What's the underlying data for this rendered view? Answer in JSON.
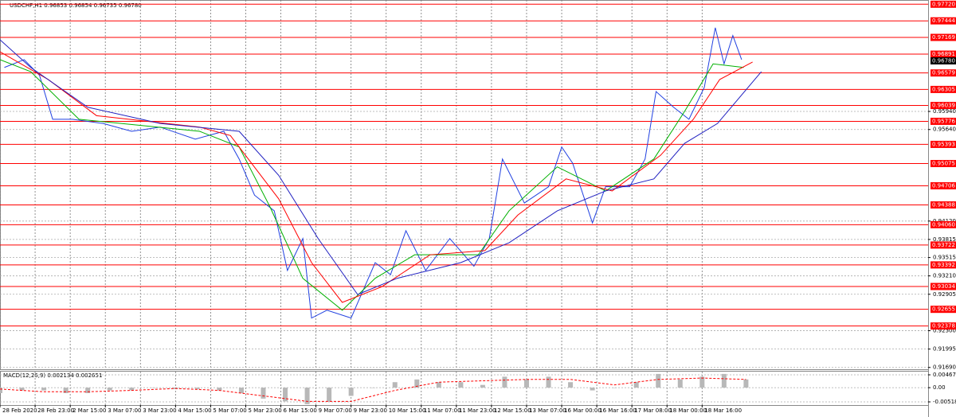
{
  "chart_data": [
    {
      "type": "line",
      "title": "USDCHF,H1  0.96853 0.96854 0.96735 0.96780",
      "xlim": [
        0,
        423
      ],
      "ylim": [
        0.9166,
        0.9779
      ],
      "grid": true,
      "xticks": [
        {
          "value": 0,
          "label": "28 Feb 2020"
        },
        {
          "value": 16,
          "label": "28 Feb 23:00"
        },
        {
          "value": 32,
          "label": "2 Mar 15:00"
        },
        {
          "value": 48,
          "label": "3 Mar 07:00"
        },
        {
          "value": 64,
          "label": "3 Mar 23:00"
        },
        {
          "value": 80,
          "label": "4 Mar 15:00"
        },
        {
          "value": 96,
          "label": "5 Mar 07:00"
        },
        {
          "value": 112,
          "label": "5 Mar 23:00"
        },
        {
          "value": 128,
          "label": "6 Mar 15:00"
        },
        {
          "value": 144,
          "label": "9 Mar 07:00"
        },
        {
          "value": 160,
          "label": "9 Mar 23:00"
        },
        {
          "value": 176,
          "label": "10 Mar 15:00"
        },
        {
          "value": 192,
          "label": "11 Mar 07:00"
        },
        {
          "value": 208,
          "label": "11 Mar 23:00"
        },
        {
          "value": 224,
          "label": "12 Mar 15:00"
        },
        {
          "value": 240,
          "label": "13 Mar 07:00"
        },
        {
          "value": 256,
          "label": "16 Mar 00:00"
        },
        {
          "value": 272,
          "label": "16 Mar 16:00"
        },
        {
          "value": 288,
          "label": "17 Mar 08:00"
        },
        {
          "value": 304,
          "label": "18 Mar 00:00"
        },
        {
          "value": 320,
          "label": "18 Mar 16:00"
        }
      ],
      "yticks": [
        {
          "value": 0.9594,
          "label": "0.95940"
        },
        {
          "value": 0.9564,
          "label": "0.95640"
        },
        {
          "value": 0.9412,
          "label": "0.94120"
        },
        {
          "value": 0.93815,
          "label": "0.93815"
        },
        {
          "value": 0.93515,
          "label": "0.93515"
        },
        {
          "value": 0.9321,
          "label": "0.93210"
        },
        {
          "value": 0.92905,
          "label": "0.92905"
        },
        {
          "value": 0.923,
          "label": "0.92300"
        },
        {
          "value": 0.91995,
          "label": "0.91995"
        },
        {
          "value": 0.9169,
          "label": "0.91690"
        }
      ],
      "levels": {
        "color": "#ff0000",
        "items": [
          {
            "value": 0.9772,
            "label": "0.97720"
          },
          {
            "value": 0.97444,
            "label": "0.97444"
          },
          {
            "value": 0.97169,
            "label": "0.97169"
          },
          {
            "value": 0.96891,
            "label": "0.96891"
          },
          {
            "value": 0.96579,
            "label": "0.96579"
          },
          {
            "value": 0.96305,
            "label": "0.96305"
          },
          {
            "value": 0.96039,
            "label": "0.96039"
          },
          {
            "value": 0.95776,
            "label": "0.95776"
          },
          {
            "value": 0.95393,
            "label": "0.95393"
          },
          {
            "value": 0.95075,
            "label": "0.95075"
          },
          {
            "value": 0.94706,
            "label": "0.94706"
          },
          {
            "value": 0.94388,
            "label": "0.94388"
          },
          {
            "value": 0.9406,
            "label": "0.94060"
          },
          {
            "value": 0.93722,
            "label": "0.93722"
          },
          {
            "value": 0.93392,
            "label": "0.93392"
          },
          {
            "value": 0.93034,
            "label": "0.93034"
          },
          {
            "value": 0.92655,
            "label": "0.92655"
          },
          {
            "value": 0.92378,
            "label": "0.92378"
          }
        ]
      },
      "current_price": {
        "value": 0.9678,
        "label": "0.96780"
      },
      "series": [
        {
          "color": "#2040e0",
          "x": [
            2,
            11,
            18,
            24,
            33,
            47,
            60,
            73,
            89,
            102,
            109,
            116,
            125,
            131,
            138,
            142,
            149,
            160,
            171,
            178,
            185,
            194,
            205,
            216,
            223,
            229,
            239,
            250,
            256,
            261,
            270,
            276,
            287,
            294,
            299,
            307,
            314,
            321,
            326,
            330,
            334,
            338
          ],
          "values": [
            0.9667,
            0.968,
            0.9654,
            0.9581,
            0.9581,
            0.9574,
            0.9561,
            0.9568,
            0.9548,
            0.9561,
            0.9515,
            0.9455,
            0.9429,
            0.933,
            0.9383,
            0.9251,
            0.9264,
            0.9251,
            0.9343,
            0.9323,
            0.9396,
            0.933,
            0.9383,
            0.9337,
            0.9383,
            0.9515,
            0.9442,
            0.9469,
            0.9535,
            0.9508,
            0.9409,
            0.9469,
            0.9469,
            0.9515,
            0.9627,
            0.9601,
            0.9581,
            0.9634,
            0.9733,
            0.9673,
            0.972,
            0.968
          ]
        },
        {
          "color": "#00b000",
          "x": [
            0,
            14,
            36,
            91,
            109,
            123,
            138,
            156,
            171,
            189,
            218,
            232,
            254,
            276,
            298,
            312,
            325,
            339
          ],
          "values": [
            0.968,
            0.966,
            0.9581,
            0.9561,
            0.9535,
            0.9436,
            0.9317,
            0.9264,
            0.9317,
            0.9356,
            0.9356,
            0.9429,
            0.9502,
            0.9462,
            0.9515,
            0.9594,
            0.9673,
            0.9667
          ]
        },
        {
          "color": "#ff0000",
          "x": [
            0,
            22,
            44,
            91,
            105,
            127,
            142,
            156,
            174,
            196,
            221,
            236,
            258,
            279,
            301,
            316,
            328,
            343
          ],
          "values": [
            0.9693,
            0.9647,
            0.9587,
            0.9568,
            0.9554,
            0.9449,
            0.9343,
            0.9277,
            0.9303,
            0.9356,
            0.9363,
            0.9422,
            0.9482,
            0.9462,
            0.9521,
            0.9581,
            0.9647,
            0.9676
          ]
        },
        {
          "color": "#2020c0",
          "x": [
            0,
            14,
            40,
            73,
            109,
            127,
            145,
            163,
            181,
            210,
            232,
            254,
            276,
            298,
            312,
            327,
            347
          ],
          "values": [
            0.9713,
            0.9667,
            0.9601,
            0.9574,
            0.9561,
            0.9488,
            0.9383,
            0.929,
            0.9317,
            0.9343,
            0.9376,
            0.9429,
            0.9462,
            0.9482,
            0.9541,
            0.9574,
            0.966
          ]
        }
      ]
    },
    {
      "type": "bar",
      "title": "MACD(12,26,9) 0.002134 0.002651",
      "xlim": [
        0,
        423
      ],
      "ylim": [
        -0.00635,
        0.00584
      ],
      "yticks": [
        {
          "value": 0.004679,
          "label": "0.004679"
        },
        {
          "value": 0,
          "label": "0.00"
        },
        {
          "value": -0.005186,
          "label": "-0.005186"
        }
      ],
      "series": [
        {
          "kind": "bar",
          "color": "#b8b8b8",
          "x": [
            0,
            10,
            20,
            30,
            40,
            50,
            60,
            70,
            80,
            90,
            100,
            110,
            120,
            130,
            140,
            150,
            160,
            170,
            180,
            190,
            200,
            210,
            220,
            230,
            240,
            250,
            260,
            270,
            280,
            290,
            300,
            310,
            320,
            330,
            340
          ],
          "values": [
            -0.002,
            -0.001,
            -0.001,
            -0.002,
            -0.002,
            -0.001,
            -0.001,
            0,
            -0.0005,
            -0.0005,
            -0.001,
            -0.002,
            -0.004,
            -0.005,
            -0.006,
            -0.005,
            -0.003,
            0,
            0.002,
            0.003,
            0.002,
            0.002,
            0.001,
            0.004,
            0.003,
            0.004,
            0.002,
            -0.001,
            0,
            0.002,
            0.005,
            0.003,
            0.004,
            0.005,
            0.003
          ]
        },
        {
          "kind": "line",
          "color": "#ff0000",
          "x": [
            0,
            20,
            40,
            60,
            80,
            100,
            120,
            140,
            160,
            180,
            200,
            220,
            240,
            260,
            280,
            300,
            320,
            340
          ],
          "values": [
            -0.0005,
            -0.0015,
            -0.0015,
            -0.001,
            -0.0003,
            -0.001,
            -0.003,
            -0.005,
            -0.005,
            -0.001,
            0.002,
            0.0025,
            0.003,
            0.003,
            0.001,
            0.003,
            0.0035,
            0.003
          ]
        }
      ]
    }
  ]
}
